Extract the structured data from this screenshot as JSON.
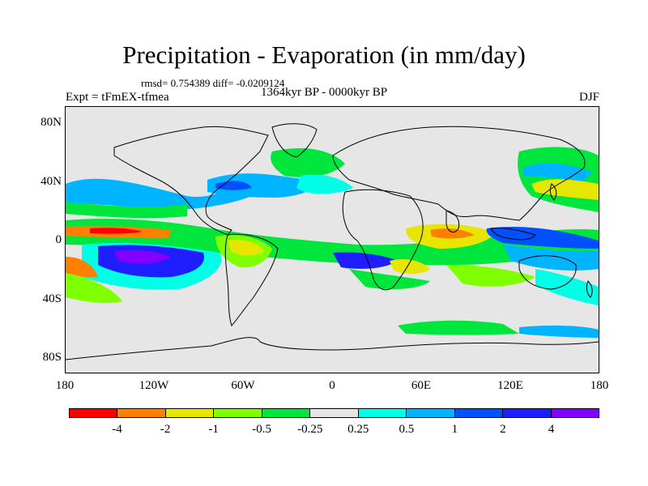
{
  "header": {
    "title": "Precipitation - Evaporation (in mm/day)",
    "stats": "rmsd= 0.754389 diff= -0.0209124",
    "period": "1364kyr BP - 0000kyr BP",
    "experiment": "Expt = tFmEX-tfmea",
    "season": "DJF"
  },
  "axes": {
    "lat_labels": [
      "80N",
      "40N",
      "0",
      "40S",
      "80S"
    ],
    "lon_labels": [
      "180",
      "120W",
      "60W",
      "0",
      "60E",
      "120E",
      "180"
    ]
  },
  "colorbar": {
    "colors": [
      "#ff0000",
      "#ff8000",
      "#e6e600",
      "#80ff00",
      "#00e63c",
      "#e6e6e6",
      "#00ffe6",
      "#00b4ff",
      "#0050ff",
      "#1e1eff",
      "#8200ff"
    ],
    "labels": [
      "-4",
      "-2",
      "-1",
      "-0.5",
      "-0.25",
      "0.25",
      "0.5",
      "1",
      "2",
      "4"
    ]
  }
}
